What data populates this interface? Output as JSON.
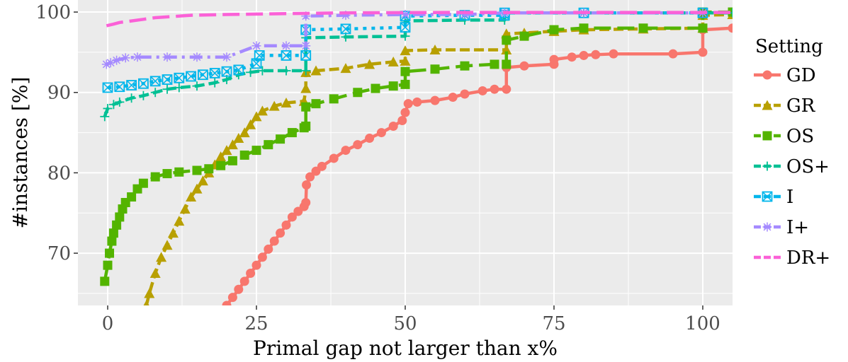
{
  "chart_data": {
    "type": "line",
    "xlabel": "Primal gap not larger than x%",
    "ylabel": "#instances [%]",
    "xlim": [
      -5,
      105
    ],
    "ylim": [
      63.5,
      101.5
    ],
    "x_ticks": [
      0,
      25,
      50,
      75,
      100
    ],
    "y_ticks": [
      70,
      80,
      90,
      100
    ],
    "grid": true,
    "legend_title": "Setting",
    "legend_position": "right",
    "series": [
      {
        "name": "GD",
        "color": "#F8766D",
        "marker": "circle",
        "dash": "solid",
        "points": [
          [
            20.0,
            63.5
          ],
          [
            21.0,
            64.5
          ],
          [
            22.0,
            65.5
          ],
          [
            23.0,
            66.5
          ],
          [
            24.0,
            67.5
          ],
          [
            25.0,
            68.5
          ],
          [
            26.0,
            69.5
          ],
          [
            27.0,
            70.5
          ],
          [
            28.0,
            71.5
          ],
          [
            29.0,
            72.5
          ],
          [
            30.0,
            73.5
          ],
          [
            31.0,
            74.5
          ],
          [
            32.0,
            75.2
          ],
          [
            33.0,
            75.8
          ],
          [
            33.3,
            76.3
          ],
          [
            33.4,
            78.5
          ],
          [
            34.0,
            79.5
          ],
          [
            35.0,
            80.2
          ],
          [
            36.0,
            80.8
          ],
          [
            38.0,
            81.8
          ],
          [
            40.0,
            82.8
          ],
          [
            42.0,
            83.5
          ],
          [
            44.0,
            84.3
          ],
          [
            46.0,
            85.0
          ],
          [
            48.0,
            85.8
          ],
          [
            49.5,
            86.5
          ],
          [
            50.0,
            87.5
          ],
          [
            50.5,
            88.6
          ],
          [
            52.0,
            88.8
          ],
          [
            55.0,
            89.0
          ],
          [
            58.0,
            89.4
          ],
          [
            60.0,
            89.8
          ],
          [
            63.0,
            90.2
          ],
          [
            65.0,
            90.4
          ],
          [
            67.0,
            90.4
          ],
          [
            67.0,
            93.1
          ],
          [
            70.0,
            93.3
          ],
          [
            75.0,
            93.5
          ],
          [
            75.0,
            94.1
          ],
          [
            78.0,
            94.4
          ],
          [
            80.0,
            94.6
          ],
          [
            82.0,
            94.7
          ],
          [
            85.0,
            94.8
          ],
          [
            95.0,
            94.8
          ],
          [
            100.0,
            95.0
          ],
          [
            100.0,
            97.8
          ],
          [
            105.0,
            98.0
          ]
        ]
      },
      {
        "name": "GR",
        "color": "#B8A000",
        "marker": "triangle",
        "dash": "dashed",
        "points": [
          [
            6.5,
            63.5
          ],
          [
            7.0,
            65.0
          ],
          [
            8.0,
            67.5
          ],
          [
            9.0,
            69.5
          ],
          [
            10.0,
            71.0
          ],
          [
            11.0,
            72.5
          ],
          [
            12.0,
            74.0
          ],
          [
            13.0,
            75.5
          ],
          [
            14.0,
            77.0
          ],
          [
            15.0,
            78.0
          ],
          [
            16.0,
            79.0
          ],
          [
            17.0,
            80.0
          ],
          [
            18.0,
            81.0
          ],
          [
            19.0,
            82.0
          ],
          [
            20.0,
            82.8
          ],
          [
            21.0,
            83.5
          ],
          [
            22.0,
            84.3
          ],
          [
            23.0,
            85.0
          ],
          [
            24.0,
            86.0
          ],
          [
            25.0,
            87.0
          ],
          [
            26.0,
            87.7
          ],
          [
            28.0,
            88.3
          ],
          [
            30.0,
            88.7
          ],
          [
            33.0,
            88.9
          ],
          [
            33.3,
            90.5
          ],
          [
            33.3,
            92.5
          ],
          [
            35.0,
            92.7
          ],
          [
            40.0,
            93.0
          ],
          [
            44.0,
            93.5
          ],
          [
            48.0,
            93.8
          ],
          [
            50.0,
            93.9
          ],
          [
            50.0,
            95.2
          ],
          [
            55.0,
            95.3
          ],
          [
            67.0,
            95.3
          ],
          [
            67.0,
            97.3
          ],
          [
            70.0,
            97.4
          ],
          [
            75.0,
            97.6
          ],
          [
            80.0,
            97.8
          ],
          [
            90.0,
            97.9
          ],
          [
            100.0,
            98.0
          ],
          [
            100.0,
            99.6
          ],
          [
            105.0,
            99.7
          ]
        ]
      },
      {
        "name": "OS",
        "color": "#53B400",
        "marker": "square",
        "dash": "longdash",
        "points": [
          [
            -0.5,
            66.5
          ],
          [
            0.0,
            68.5
          ],
          [
            0.3,
            70.0
          ],
          [
            0.7,
            71.5
          ],
          [
            1.0,
            72.5
          ],
          [
            1.5,
            73.5
          ],
          [
            2.0,
            74.5
          ],
          [
            2.5,
            75.5
          ],
          [
            3.0,
            76.3
          ],
          [
            4.0,
            77.0
          ],
          [
            5.0,
            78.0
          ],
          [
            6.0,
            78.7
          ],
          [
            8.0,
            79.5
          ],
          [
            10.0,
            79.9
          ],
          [
            12.0,
            80.1
          ],
          [
            15.0,
            80.3
          ],
          [
            17.0,
            80.5
          ],
          [
            19.0,
            80.9
          ],
          [
            21.0,
            81.5
          ],
          [
            23.0,
            82.2
          ],
          [
            25.0,
            82.8
          ],
          [
            27.0,
            83.5
          ],
          [
            29.0,
            84.2
          ],
          [
            31.0,
            85.0
          ],
          [
            33.0,
            85.6
          ],
          [
            33.3,
            85.8
          ],
          [
            33.3,
            88.2
          ],
          [
            35.0,
            88.6
          ],
          [
            38.0,
            89.2
          ],
          [
            42.0,
            90.0
          ],
          [
            45.0,
            90.5
          ],
          [
            48.0,
            90.8
          ],
          [
            50.0,
            91.0
          ],
          [
            50.0,
            92.6
          ],
          [
            55.0,
            92.9
          ],
          [
            60.0,
            93.3
          ],
          [
            65.0,
            93.5
          ],
          [
            67.0,
            93.5
          ],
          [
            67.0,
            96.5
          ],
          [
            70.0,
            97.0
          ],
          [
            75.0,
            97.8
          ],
          [
            80.0,
            98.0
          ],
          [
            90.0,
            98.0
          ],
          [
            100.0,
            98.0
          ],
          [
            100.0,
            100.0
          ],
          [
            105.0,
            100.0
          ]
        ]
      },
      {
        "name": "OS+",
        "color": "#00C094",
        "marker": "plus",
        "dash": "dashed",
        "points": [
          [
            -0.5,
            87.0
          ],
          [
            0.0,
            88.0
          ],
          [
            1.0,
            88.5
          ],
          [
            2.0,
            88.8
          ],
          [
            4.0,
            89.3
          ],
          [
            6.0,
            89.6
          ],
          [
            8.0,
            90.0
          ],
          [
            10.0,
            90.4
          ],
          [
            12.0,
            90.6
          ],
          [
            15.0,
            90.8
          ],
          [
            18.0,
            91.2
          ],
          [
            20.0,
            91.6
          ],
          [
            22.0,
            92.2
          ],
          [
            24.0,
            92.5
          ],
          [
            26.0,
            92.7
          ],
          [
            30.0,
            92.7
          ],
          [
            33.3,
            92.7
          ],
          [
            33.3,
            96.8
          ],
          [
            40.0,
            96.9
          ],
          [
            50.0,
            97.0
          ],
          [
            50.0,
            98.9
          ],
          [
            60.0,
            99.0
          ],
          [
            66.7,
            99.0
          ],
          [
            66.7,
            99.9
          ],
          [
            80.0,
            99.9
          ],
          [
            100.0,
            99.9
          ],
          [
            105.0,
            99.9
          ]
        ]
      },
      {
        "name": "I",
        "color": "#00B6EB",
        "marker": "boxx",
        "dash": "dotted",
        "points": [
          [
            0.0,
            90.6
          ],
          [
            2.0,
            90.7
          ],
          [
            4.0,
            90.9
          ],
          [
            6.0,
            91.1
          ],
          [
            8.0,
            91.4
          ],
          [
            10.0,
            91.6
          ],
          [
            12.0,
            91.8
          ],
          [
            14.0,
            92.0
          ],
          [
            16.0,
            92.2
          ],
          [
            18.0,
            92.4
          ],
          [
            20.0,
            92.6
          ],
          [
            22.0,
            92.8
          ],
          [
            25.0,
            93.6
          ],
          [
            25.5,
            94.6
          ],
          [
            30.0,
            94.6
          ],
          [
            33.3,
            94.6
          ],
          [
            33.3,
            97.8
          ],
          [
            40.0,
            97.9
          ],
          [
            50.0,
            98.1
          ],
          [
            50.0,
            99.5
          ],
          [
            60.0,
            99.6
          ],
          [
            66.7,
            99.6
          ],
          [
            66.7,
            99.9
          ],
          [
            80.0,
            99.9
          ],
          [
            100.0,
            99.9
          ]
        ]
      },
      {
        "name": "I+",
        "color": "#A58AFF",
        "marker": "star",
        "dash": "dotdash",
        "points": [
          [
            -0.2,
            93.5
          ],
          [
            0.5,
            93.7
          ],
          [
            1.5,
            94.0
          ],
          [
            3.0,
            94.3
          ],
          [
            5.0,
            94.4
          ],
          [
            10.0,
            94.4
          ],
          [
            15.0,
            94.4
          ],
          [
            20.0,
            94.4
          ],
          [
            25.0,
            95.8
          ],
          [
            30.0,
            95.8
          ],
          [
            33.3,
            95.8
          ],
          [
            33.3,
            99.5
          ],
          [
            40.0,
            99.6
          ],
          [
            50.0,
            99.7
          ],
          [
            60.0,
            99.7
          ],
          [
            66.7,
            99.9
          ],
          [
            80.0,
            99.9
          ],
          [
            100.0,
            99.9
          ]
        ]
      },
      {
        "name": "DR+",
        "color": "#FB61D7",
        "marker": "none",
        "dash": "longdash",
        "points": [
          [
            -0.2,
            98.3
          ],
          [
            1.0,
            98.5
          ],
          [
            2.0,
            98.7
          ],
          [
            4.0,
            98.9
          ],
          [
            6.0,
            99.1
          ],
          [
            8.0,
            99.3
          ],
          [
            10.0,
            99.4
          ],
          [
            14.0,
            99.6
          ],
          [
            20.0,
            99.7
          ],
          [
            30.0,
            99.8
          ],
          [
            40.0,
            99.9
          ],
          [
            60.0,
            99.95
          ],
          [
            100.0,
            99.95
          ],
          [
            105.0,
            99.95
          ]
        ]
      }
    ]
  }
}
